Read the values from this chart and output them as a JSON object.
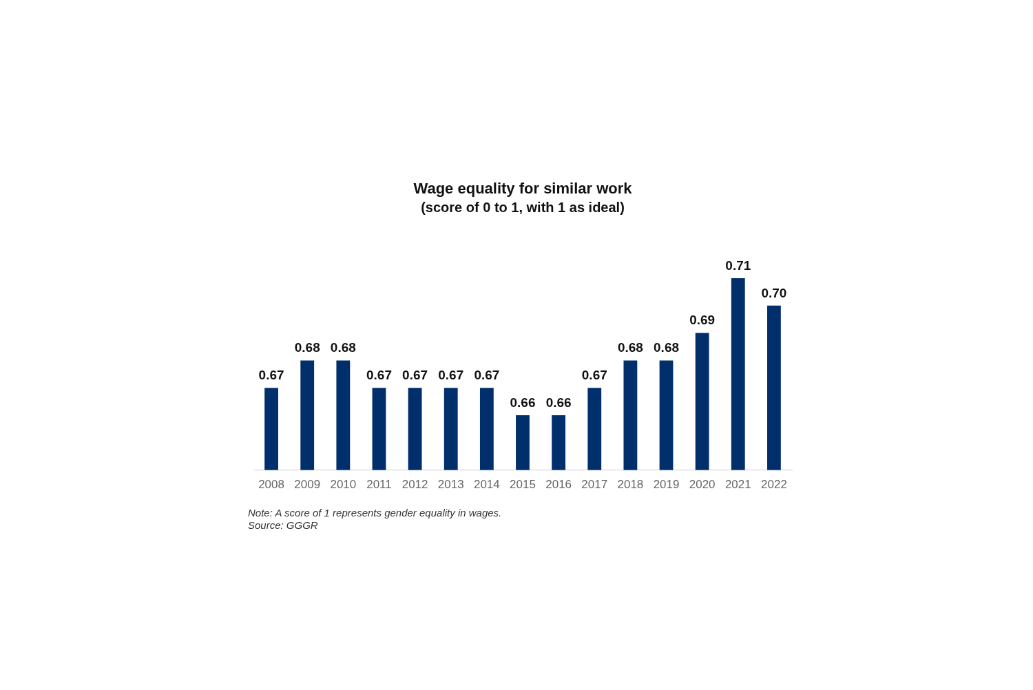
{
  "chart_data": {
    "type": "bar",
    "title": "Wage equality for similar work",
    "subtitle": "(score of 0 to 1, with 1 as ideal)",
    "categories": [
      "2008",
      "2009",
      "2010",
      "2011",
      "2012",
      "2013",
      "2014",
      "2015",
      "2016",
      "2017",
      "2018",
      "2019",
      "2020",
      "2021",
      "2022"
    ],
    "values": [
      0.67,
      0.68,
      0.68,
      0.67,
      0.67,
      0.67,
      0.67,
      0.66,
      0.66,
      0.67,
      0.68,
      0.68,
      0.69,
      0.71,
      0.7
    ],
    "value_labels": [
      "0.67",
      "0.68",
      "0.68",
      "0.67",
      "0.67",
      "0.67",
      "0.67",
      "0.66",
      "0.66",
      "0.67",
      "0.68",
      "0.68",
      "0.69",
      "0.71",
      "0.70"
    ],
    "color": "#002f6c",
    "grid": false,
    "legend": false,
    "annotations": [
      "Note: A score of 1 represents gender equality in wages.",
      "Source: GGGR"
    ]
  }
}
